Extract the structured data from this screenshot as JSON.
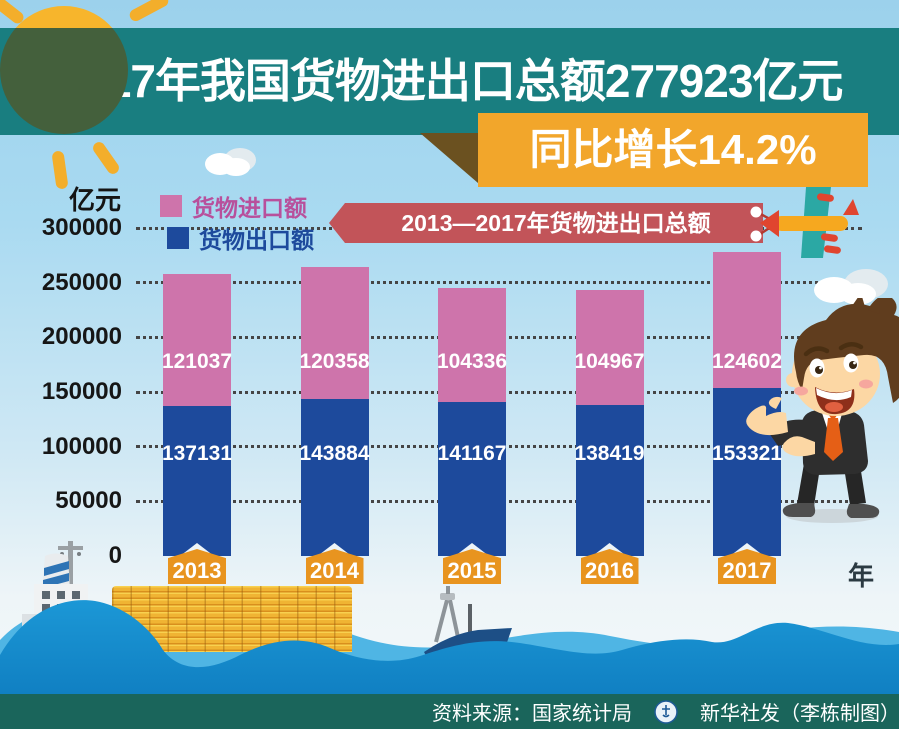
{
  "title_banner": {
    "text": "2017年我国货物进出口总额277923亿元"
  },
  "growth_banner": {
    "text": "同比增长14.2%"
  },
  "ribbon": {
    "text": "2013—2017年货物进出口总额"
  },
  "legend": {
    "text_colors": [
      "#b8509c",
      "#1d4a9c"
    ]
  },
  "chart_data": {
    "type": "bar",
    "stacked": true,
    "title": "2013—2017年货物进出口总额",
    "unit_label": "亿元",
    "x_axis_label": "年",
    "categories": [
      "2013",
      "2014",
      "2015",
      "2016",
      "2017"
    ],
    "series": [
      {
        "name": "货物进口额",
        "role": "import-top",
        "color": "#ce74ab",
        "values": [
          121037,
          120358,
          104336,
          104967,
          124602
        ]
      },
      {
        "name": "货物出口额",
        "role": "export-bottom",
        "color": "#1d4a9c",
        "values": [
          137131,
          143884,
          141167,
          138419,
          153321
        ]
      }
    ],
    "totals": [
      258168,
      264242,
      245503,
      243386,
      277923
    ],
    "y_ticks": [
      0,
      50000,
      100000,
      150000,
      200000,
      250000,
      300000
    ],
    "ylim": [
      0,
      300000
    ],
    "grid": "dotted-horizontal",
    "legend_position": "top-left"
  },
  "footer": {
    "source": "资料来源：国家统计局",
    "credit": "新华社发（李栋制图）"
  },
  "decorations": {
    "icons": [
      "sun-icon",
      "cloud-icon",
      "airplane-icon",
      "businessman-illustration",
      "cargo-ship-icon",
      "fishing-boat-icon",
      "coin-stacks-icon",
      "waves-icon",
      "xinhua-emblem-icon"
    ],
    "colors": {
      "sky_top": "#9cd1ec",
      "band_teal": "#197e80",
      "growth_orange": "#f2a62b",
      "fold_brown": "#6b5120",
      "ribbon_red": "#c25459",
      "import_pink": "#ce74ab",
      "export_blue": "#1d4a9c",
      "year_tab_orange": "#e8941f",
      "wave_blue": "#1691d3",
      "wave_light": "#4fb5e4",
      "footer_green": "#1a655b",
      "coin_gold": "#f0b433",
      "sun_yellow": "#f7b52c"
    }
  }
}
